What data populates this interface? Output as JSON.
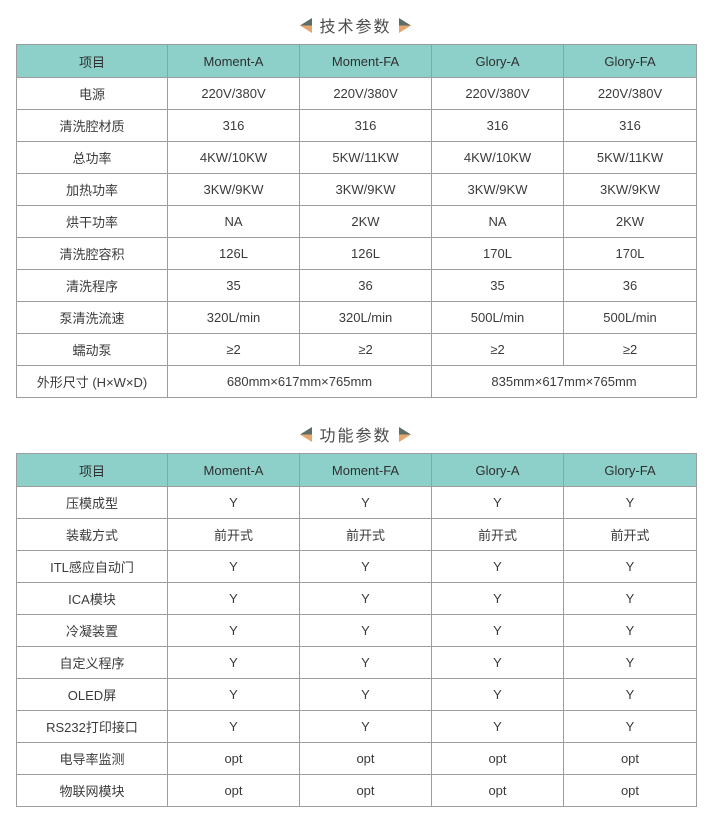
{
  "colors": {
    "header_bg": "#8dd0c9",
    "header_text": "#2f2f2f",
    "border": "#9d9d9d",
    "outer_border": "#6e6e6e",
    "text": "#3b3b3b",
    "title": "#4c4c4c",
    "marker_teal": "#5a6e67",
    "marker_orange": "#e6a66d"
  },
  "sections": [
    {
      "title": "技术参数",
      "columns": [
        "项目",
        "Moment-A",
        "Moment-FA",
        "Glory-A",
        "Glory-FA"
      ],
      "rows": [
        {
          "label": "电源",
          "cells": [
            "220V/380V",
            "220V/380V",
            "220V/380V",
            "220V/380V"
          ]
        },
        {
          "label": "清洗腔材质",
          "cells": [
            "316",
            "316",
            "316",
            "316"
          ]
        },
        {
          "label": "总功率",
          "cells": [
            "4KW/10KW",
            "5KW/11KW",
            "4KW/10KW",
            "5KW/11KW"
          ]
        },
        {
          "label": "加热功率",
          "cells": [
            "3KW/9KW",
            "3KW/9KW",
            "3KW/9KW",
            "3KW/9KW"
          ]
        },
        {
          "label": "烘干功率",
          "cells": [
            "NA",
            "2KW",
            "NA",
            "2KW"
          ]
        },
        {
          "label": "清洗腔容积",
          "cells": [
            "126L",
            "126L",
            "170L",
            "170L"
          ]
        },
        {
          "label": "清洗程序",
          "cells": [
            "35",
            "36",
            "35",
            "36"
          ]
        },
        {
          "label": "泵清洗流速",
          "cells": [
            "320L/min",
            "320L/min",
            "500L/min",
            "500L/min"
          ]
        },
        {
          "label": "蠕动泵",
          "cells": [
            "≥2",
            "≥2",
            "≥2",
            "≥2"
          ]
        },
        {
          "label": "外形尺寸 (H×W×D)",
          "cells": [
            "680mm×617mm×765mm",
            "835mm×617mm×765mm"
          ],
          "spans": [
            2,
            2
          ]
        }
      ]
    },
    {
      "title": "功能参数",
      "columns": [
        "项目",
        "Moment-A",
        "Moment-FA",
        "Glory-A",
        "Glory-FA"
      ],
      "rows": [
        {
          "label": "压模成型",
          "cells": [
            "Y",
            "Y",
            "Y",
            "Y"
          ]
        },
        {
          "label": "装载方式",
          "cells": [
            "前开式",
            "前开式",
            "前开式",
            "前开式"
          ]
        },
        {
          "label": "ITL感应自动门",
          "cells": [
            "Y",
            "Y",
            "Y",
            "Y"
          ]
        },
        {
          "label": "ICA模块",
          "cells": [
            "Y",
            "Y",
            "Y",
            "Y"
          ]
        },
        {
          "label": "冷凝装置",
          "cells": [
            "Y",
            "Y",
            "Y",
            "Y"
          ]
        },
        {
          "label": "自定义程序",
          "cells": [
            "Y",
            "Y",
            "Y",
            "Y"
          ]
        },
        {
          "label": "OLED屏",
          "cells": [
            "Y",
            "Y",
            "Y",
            "Y"
          ]
        },
        {
          "label": "RS232打印接口",
          "cells": [
            "Y",
            "Y",
            "Y",
            "Y"
          ]
        },
        {
          "label": "电导率监测",
          "cells": [
            "opt",
            "opt",
            "opt",
            "opt"
          ]
        },
        {
          "label": "物联网模块",
          "cells": [
            "opt",
            "opt",
            "opt",
            "opt"
          ]
        }
      ]
    }
  ]
}
